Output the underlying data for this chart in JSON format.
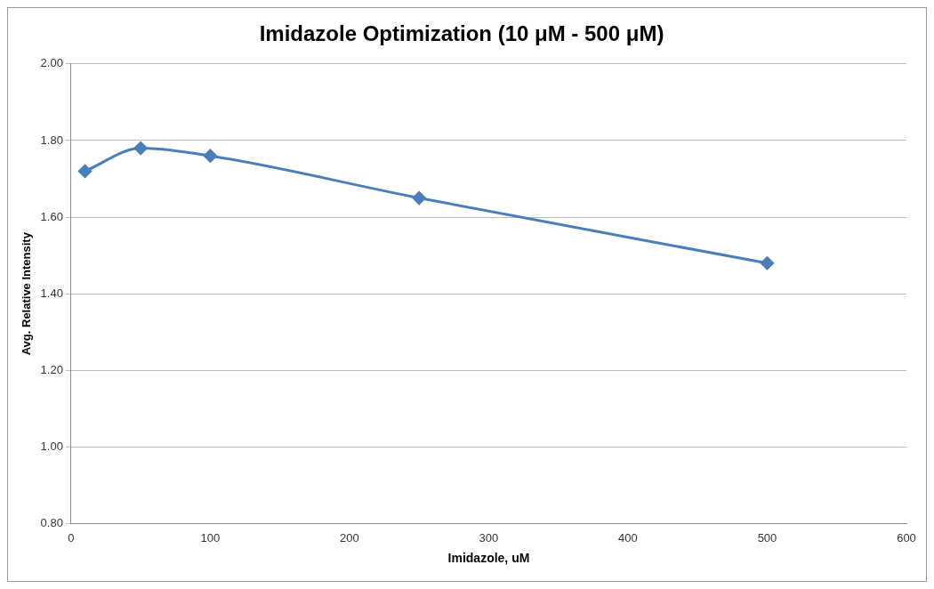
{
  "chart_data": {
    "type": "line",
    "title": "Imidazole Optimization (10 μM - 500 μM)",
    "xlabel": "Imidazole, uM",
    "ylabel": "Avg. Relative Intensity",
    "x": [
      10,
      50,
      100,
      250,
      500
    ],
    "series": [
      {
        "color": "#4a7ebb",
        "values": [
          1.72,
          1.78,
          1.76,
          1.65,
          1.48
        ]
      }
    ],
    "xlim": [
      0,
      600
    ],
    "xticks": [
      0,
      100,
      200,
      300,
      400,
      500,
      600
    ],
    "ylim": [
      0.8,
      2.0
    ],
    "yticks": [
      {
        "value": 0.8,
        "label": "0.80"
      },
      {
        "value": 1.0,
        "label": "1.00"
      },
      {
        "value": 1.2,
        "label": "1.20"
      },
      {
        "value": 1.4,
        "label": "1.40"
      },
      {
        "value": 1.6,
        "label": "1.60"
      },
      {
        "value": 1.8,
        "label": "1.80"
      },
      {
        "value": 2.0,
        "label": "2.00"
      }
    ],
    "grid": "y",
    "legend": false,
    "marker": "diamond",
    "line_style": "solid"
  }
}
